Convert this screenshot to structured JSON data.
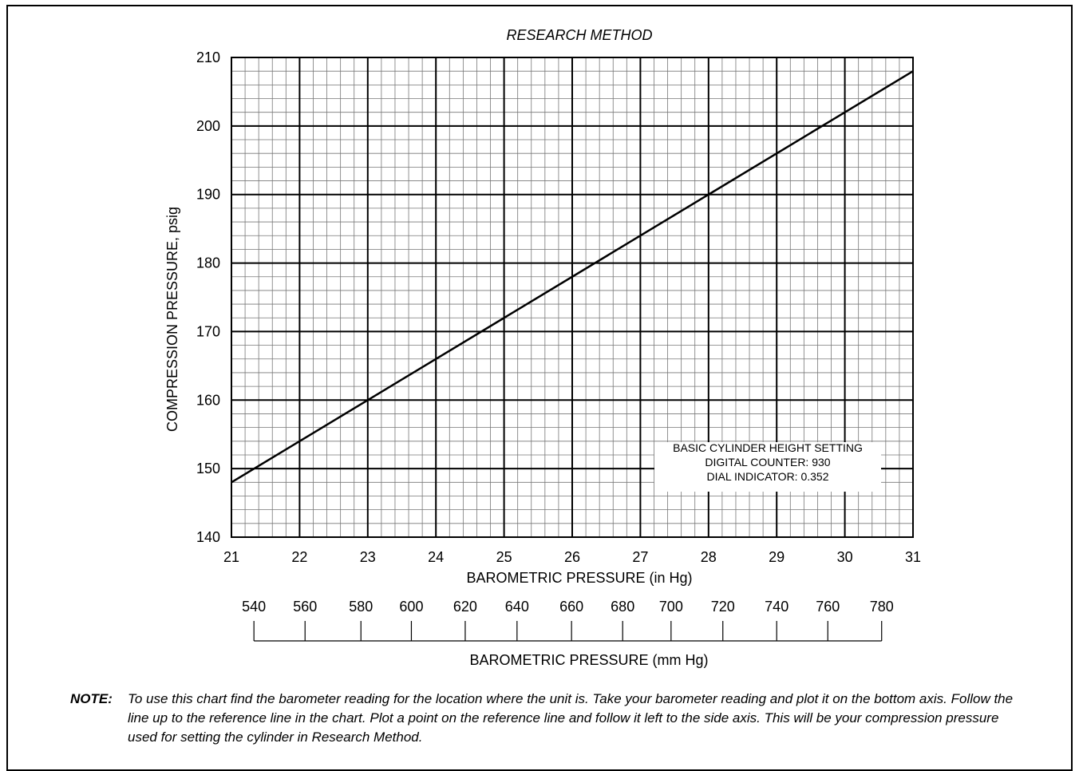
{
  "chart_data": {
    "type": "line",
    "title": "RESEARCH METHOD",
    "xlabel": "BAROMETRIC PRESSURE (in Hg)",
    "ylabel": "COMPRESSION PRESSURE, psig",
    "xlim": [
      21,
      31
    ],
    "ylim": [
      140,
      210
    ],
    "x_ticks": [
      "21",
      "22",
      "23",
      "24",
      "25",
      "26",
      "27",
      "28",
      "29",
      "30",
      "31"
    ],
    "y_ticks": [
      "210",
      "200",
      "190",
      "180",
      "170",
      "160",
      "150",
      "140"
    ],
    "grid": true,
    "x": [
      21,
      23,
      28,
      29.85,
      31
    ],
    "series": [
      {
        "name": "",
        "values": [
          148,
          160,
          190,
          201.1,
          208
        ]
      }
    ],
    "secondary_axis": {
      "label": "BAROMETRIC PRESSURE (mm Hg)",
      "ticks": [
        {
          "label": "540",
          "inHg": 21.33
        },
        {
          "label": "560",
          "inHg": 22.08
        },
        {
          "label": "580",
          "inHg": 22.9
        },
        {
          "label": "600",
          "inHg": 23.64
        },
        {
          "label": "620",
          "inHg": 24.43
        },
        {
          "label": "640",
          "inHg": 25.19
        },
        {
          "label": "660",
          "inHg": 25.99
        },
        {
          "label": "680",
          "inHg": 26.74
        },
        {
          "label": "700",
          "inHg": 27.45
        },
        {
          "label": "720",
          "inHg": 28.21
        },
        {
          "label": "740",
          "inHg": 29.0
        },
        {
          "label": "760",
          "inHg": 29.75
        },
        {
          "label": "780",
          "inHg": 30.54
        }
      ]
    },
    "annotation": {
      "lines": [
        "BASIC CYLINDER HEIGHT SETTING",
        "DIGITAL COUNTER: 930",
        "DIAL INDICATOR: 0.352"
      ],
      "placement": "lower-right"
    }
  },
  "note": {
    "label": "NOTE:",
    "text": "To use this chart find the barometer reading for the location where the unit is. Take your barometer reading and plot it on the bottom axis. Follow the line up to the reference line in the chart. Plot a point on the reference line and follow it left to the side axis. This will be your compression pressure used for setting the cylinder in Research Method."
  }
}
